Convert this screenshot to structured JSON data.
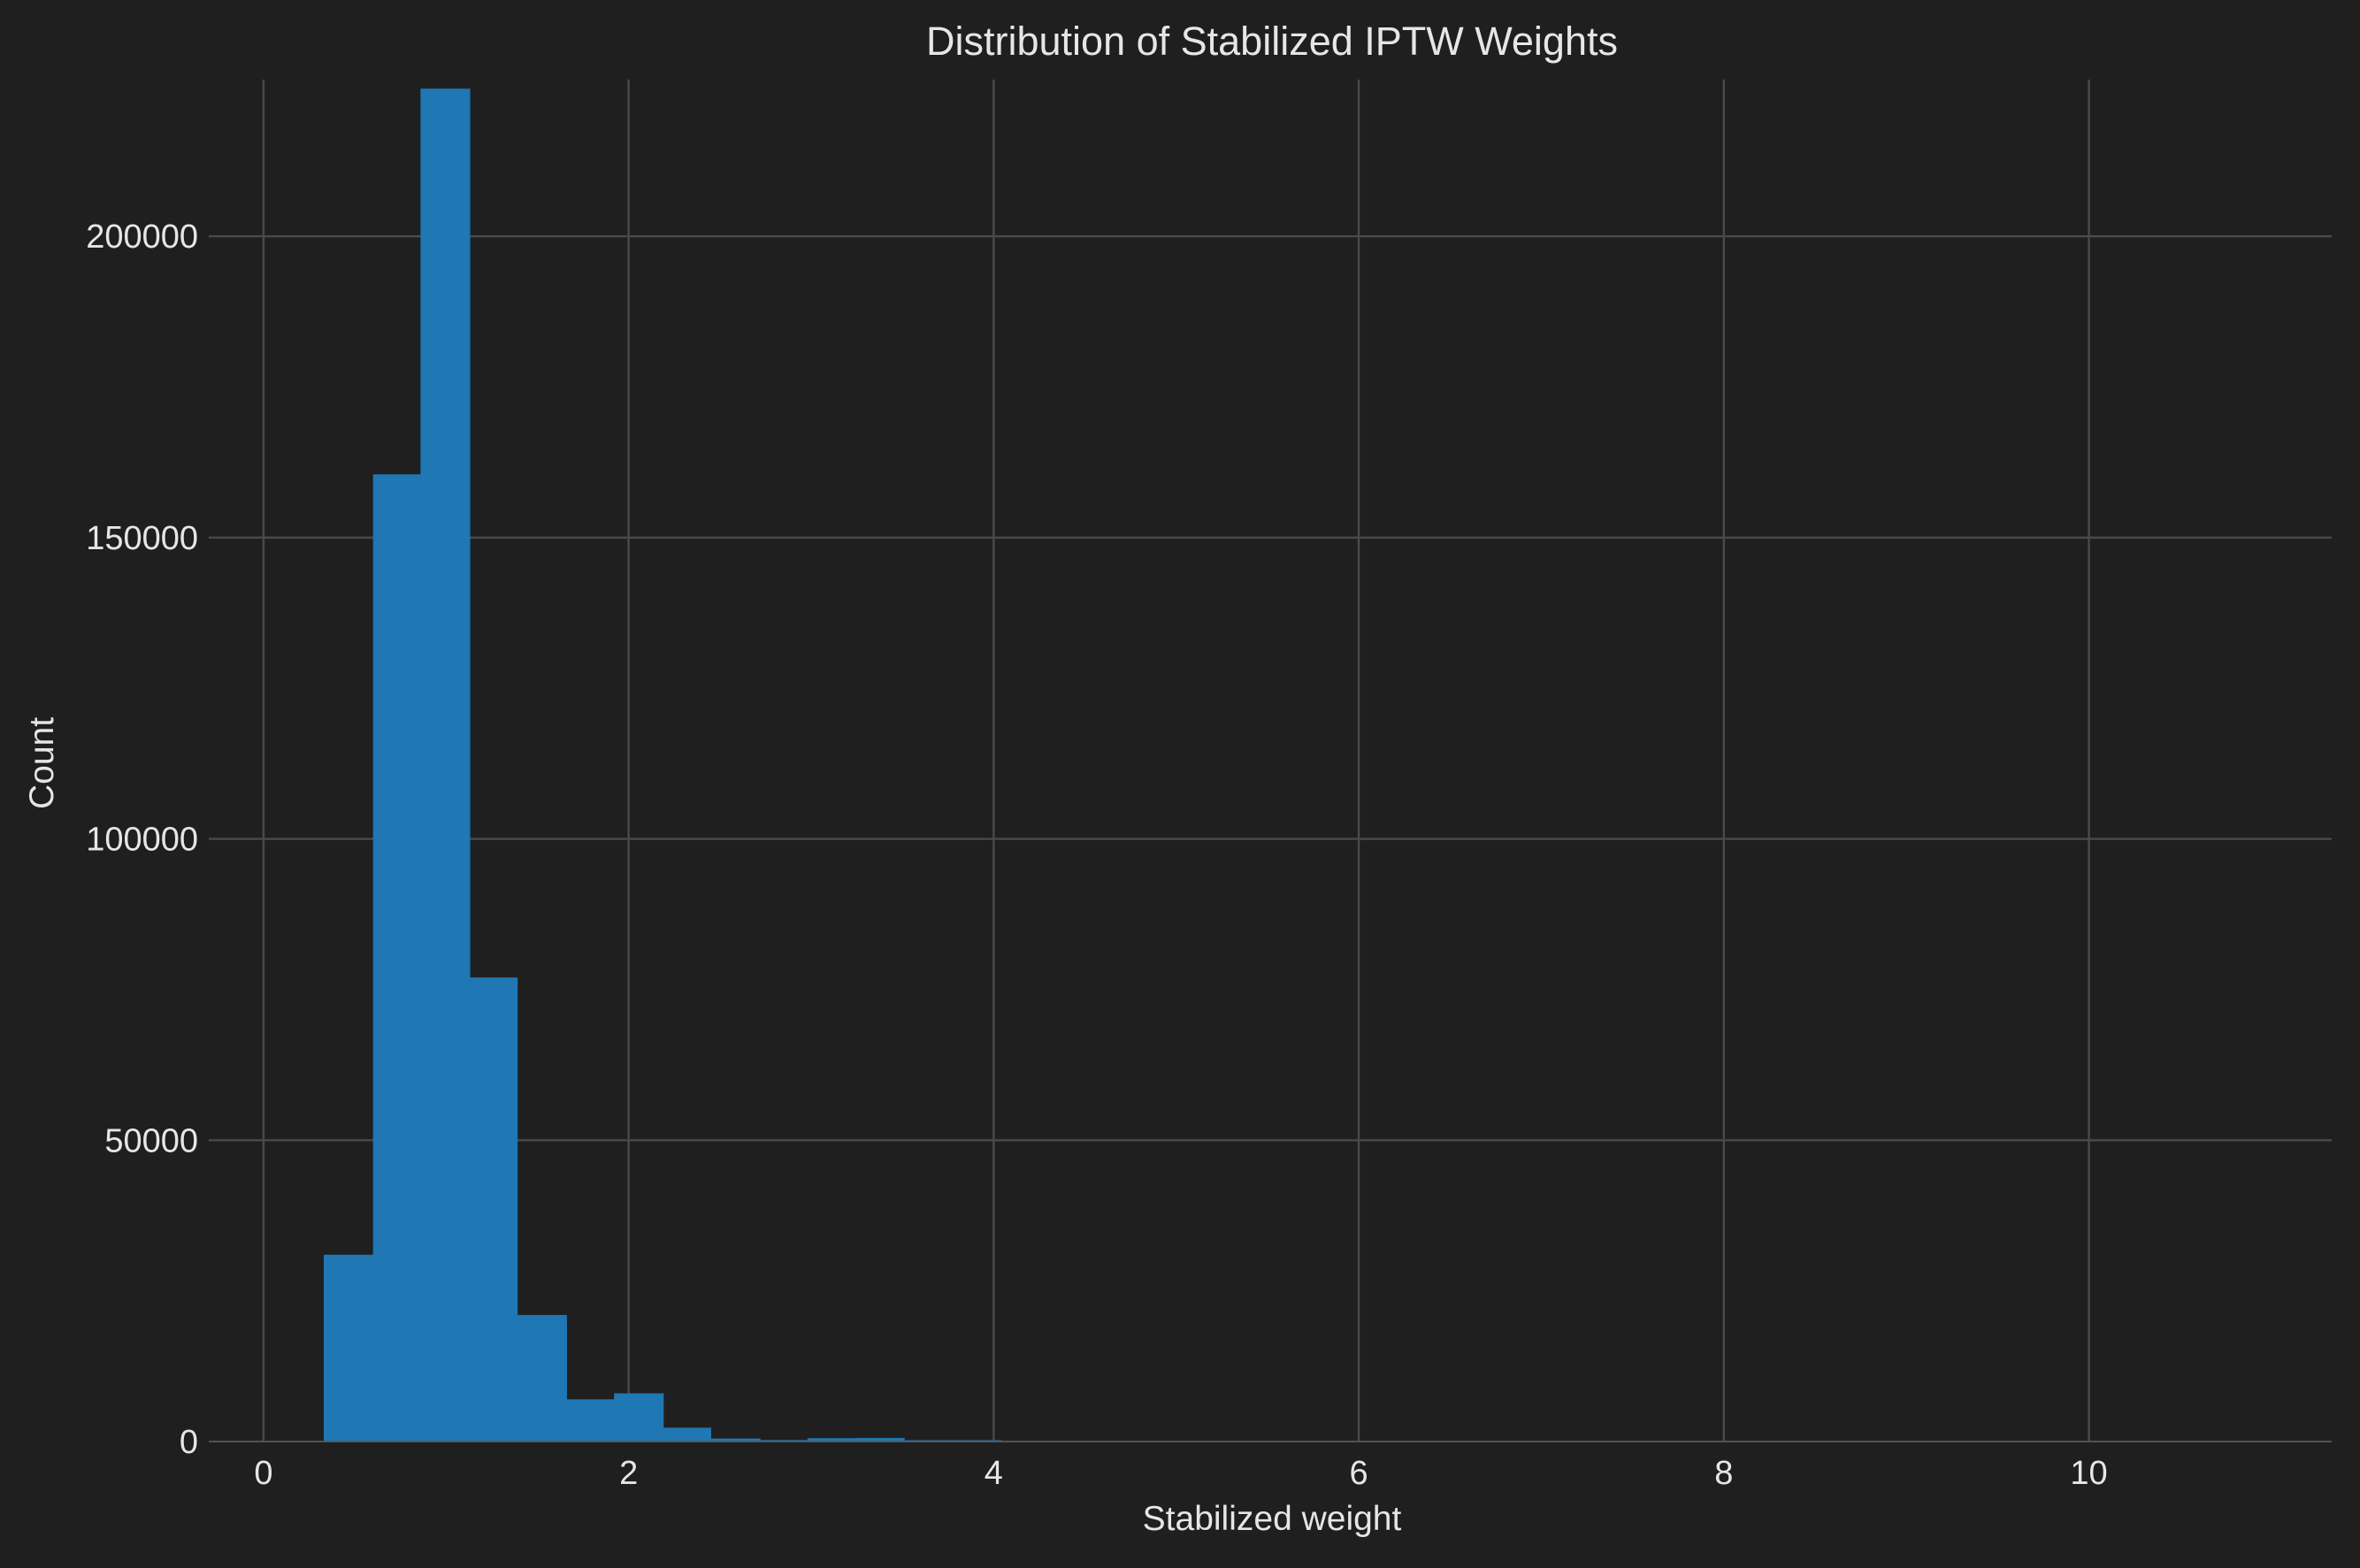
{
  "colors": {
    "background": "#1f1f1f",
    "bar": "#1f77b4",
    "grid": "#4a4a4a",
    "text": "#e6e6e6"
  },
  "chart_data": {
    "type": "bar",
    "title": "Distribution of Stabilized IPTW Weights",
    "xlabel": "Stabilized weight",
    "ylabel": "Count",
    "xlim": [
      -0.3,
      11.33
    ],
    "ylim": [
      0,
      226000
    ],
    "grid": true,
    "xticks": [
      0,
      2,
      4,
      6,
      8,
      10
    ],
    "xtick_labels": [
      "0",
      "2",
      "4",
      "6",
      "8",
      "10"
    ],
    "yticks": [
      0,
      50000,
      100000,
      150000,
      200000
    ],
    "ytick_labels": [
      "0",
      "50000",
      "100000",
      "150000",
      "200000"
    ],
    "bins": [
      {
        "x0": 0.33,
        "x1": 0.6,
        "value": 31000
      },
      {
        "x0": 0.6,
        "x1": 0.86,
        "value": 160500
      },
      {
        "x0": 0.86,
        "x1": 1.13,
        "value": 224500
      },
      {
        "x0": 1.13,
        "x1": 1.39,
        "value": 77000
      },
      {
        "x0": 1.39,
        "x1": 1.66,
        "value": 21000
      },
      {
        "x0": 1.66,
        "x1": 1.92,
        "value": 7000
      },
      {
        "x0": 1.92,
        "x1": 2.19,
        "value": 8000
      },
      {
        "x0": 2.19,
        "x1": 2.45,
        "value": 2300
      },
      {
        "x0": 2.45,
        "x1": 2.72,
        "value": 500
      },
      {
        "x0": 2.72,
        "x1": 2.98,
        "value": 250
      },
      {
        "x0": 2.98,
        "x1": 3.25,
        "value": 550
      },
      {
        "x0": 3.25,
        "x1": 3.51,
        "value": 600
      },
      {
        "x0": 3.51,
        "x1": 3.78,
        "value": 200
      },
      {
        "x0": 3.78,
        "x1": 4.04,
        "value": 150
      }
    ]
  }
}
